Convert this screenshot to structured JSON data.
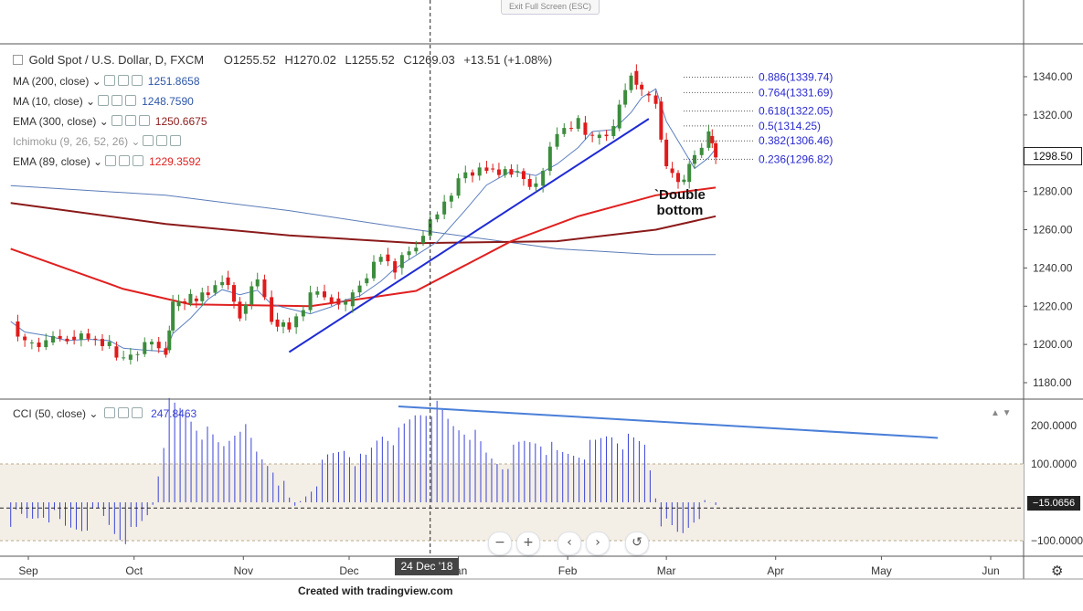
{
  "ui": {
    "exit_fullscreen": "Exit Full Screen (ESC)",
    "footer": "Created with tradingview.com",
    "nav_buttons": [
      {
        "name": "zoom-out-button",
        "glyph": "−"
      },
      {
        "name": "zoom-in-button",
        "glyph": "+"
      },
      {
        "name": "scroll-left-button",
        "glyph": "‹"
      },
      {
        "name": "scroll-right-button",
        "glyph": "›"
      },
      {
        "name": "reset-button",
        "glyph": "↺"
      }
    ],
    "settings_icon": "gear-icon"
  },
  "header": {
    "symbol": "Gold Spot / U.S. Dollar, D, FXCM",
    "open": "O1255.52",
    "high": "H1270.02",
    "low": "L1255.52",
    "close": "C1269.03",
    "change": "+13.51 (+1.08%)"
  },
  "indicators": [
    {
      "label": "MA (200, close)",
      "value": "1251.8658",
      "color": "#2e57a8"
    },
    {
      "label": "MA (10, close)",
      "value": "1248.7590",
      "color": "#2e57a8"
    },
    {
      "label": "EMA (300, close)",
      "value": "1250.6675",
      "color": "#8b1a1a"
    },
    {
      "label": "Ichimoku (9, 26, 52, 26)",
      "value": "",
      "color": "#aaaaaa"
    },
    {
      "label": "EMA (89, close)",
      "value": "1229.3592",
      "color": "#e02020"
    }
  ],
  "cci": {
    "label": "CCI (50, close)",
    "value": "247.8463",
    "current": "−15.0656"
  },
  "annotations": {
    "double_bottom_line1": "`Double",
    "double_bottom_line2": "bottom"
  },
  "crosshair": {
    "date_label": "24 Dec '18"
  },
  "current_price": "1298.50",
  "colors": {
    "up": "#3c8c3c",
    "down": "#e01b1b",
    "ma200": "#5a7bb8",
    "ma10": "#5c7fc0",
    "ema300": "#8b1a1a",
    "ema89": "#e02020",
    "trend": "#1f2bd4",
    "cci": "#3a43d6",
    "cciTrend": "#4a7fd8"
  },
  "chart_data": {
    "type": "candlestick",
    "price_axis": {
      "ticks": [
        1180,
        1200,
        1220,
        1240,
        1260,
        1280,
        1300,
        1320,
        1340
      ],
      "labels": [
        "1180.00",
        "1200.00",
        "1220.00",
        "1240.00",
        "1260.00",
        "1280.00",
        "1300.00",
        "1320.00",
        "1340.00"
      ]
    },
    "cci_axis": {
      "ticks": [
        200,
        100,
        -100
      ],
      "labels": [
        "200.0000",
        "100.0000",
        "−100.0000"
      ],
      "band": [
        -100,
        100
      ]
    },
    "x_labels": [
      "Sep",
      "Oct",
      "Nov",
      "Dec",
      "Jan",
      "Feb",
      "Mar",
      "Apr",
      "May",
      "Jun"
    ],
    "x_label_dates": [
      "2018-09-01",
      "2018-10-01",
      "2018-11-01",
      "2018-12-01",
      "2019-01-01",
      "2019-02-01",
      "2019-03-01",
      "2019-04-01",
      "2019-05-01",
      "2019-06-01"
    ],
    "crosshair_date": "2018-12-24",
    "fib_levels": [
      {
        "label": "0.886(1339.74)",
        "price": 1339.74
      },
      {
        "label": "0.764(1331.69)",
        "price": 1331.69
      },
      {
        "label": "0.618(1322.05)",
        "price": 1322.05
      },
      {
        "label": "0.5(1314.25)",
        "price": 1314.25
      },
      {
        "label": "0.382(1306.46)",
        "price": 1306.46
      },
      {
        "label": "0.236(1296.82)",
        "price": 1296.82
      }
    ],
    "closes": [
      [
        "2018-08-27",
        1212
      ],
      [
        "2018-08-31",
        1201
      ],
      [
        "2018-09-06",
        1201
      ],
      [
        "2018-09-12",
        1204
      ],
      [
        "2018-09-18",
        1203
      ],
      [
        "2018-09-24",
        1199
      ],
      [
        "2018-09-28",
        1192
      ],
      [
        "2018-10-04",
        1200
      ],
      [
        "2018-10-10",
        1197
      ],
      [
        "2018-10-12",
        1220
      ],
      [
        "2018-10-17",
        1224
      ],
      [
        "2018-10-22",
        1227
      ],
      [
        "2018-10-26",
        1235
      ],
      [
        "2018-10-31",
        1216
      ],
      [
        "2018-11-05",
        1234
      ],
      [
        "2018-11-09",
        1213
      ],
      [
        "2018-11-14",
        1209
      ],
      [
        "2018-11-20",
        1226
      ],
      [
        "2018-11-26",
        1224
      ],
      [
        "2018-11-30",
        1220
      ],
      [
        "2018-12-04",
        1232
      ],
      [
        "2018-12-10",
        1247
      ],
      [
        "2018-12-14",
        1240
      ],
      [
        "2018-12-20",
        1253
      ],
      [
        "2018-12-26",
        1268
      ],
      [
        "2019-01-03",
        1290
      ],
      [
        "2019-01-09",
        1292
      ],
      [
        "2019-01-16",
        1290
      ],
      [
        "2019-01-23",
        1283
      ],
      [
        "2019-01-29",
        1310
      ],
      [
        "2019-02-04",
        1316
      ],
      [
        "2019-02-08",
        1308
      ],
      [
        "2019-02-14",
        1313
      ],
      [
        "2019-02-19",
        1343
      ],
      [
        "2019-02-22",
        1331
      ],
      [
        "2019-02-26",
        1327
      ],
      [
        "2019-03-01",
        1292
      ],
      [
        "2019-03-06",
        1285
      ],
      [
        "2019-03-09",
        1299
      ],
      [
        "2019-03-13",
        1309
      ],
      [
        "2019-03-15",
        1299
      ]
    ],
    "lines": {
      "ma200": [
        [
          "2018-08-27",
          1283
        ],
        [
          "2018-10-10",
          1278
        ],
        [
          "2018-11-14",
          1270
        ],
        [
          "2018-12-20",
          1260
        ],
        [
          "2019-01-29",
          1250
        ],
        [
          "2019-02-26",
          1247
        ],
        [
          "2019-03-15",
          1247
        ]
      ],
      "ema300": [
        [
          "2018-08-27",
          1274
        ],
        [
          "2018-10-10",
          1263
        ],
        [
          "2018-11-14",
          1257
        ],
        [
          "2018-12-20",
          1253
        ],
        [
          "2019-01-29",
          1254
        ],
        [
          "2019-02-26",
          1260
        ],
        [
          "2019-03-15",
          1267
        ]
      ],
      "ema89": [
        [
          "2018-08-27",
          1250
        ],
        [
          "2018-09-28",
          1229
        ],
        [
          "2018-10-17",
          1221
        ],
        [
          "2018-11-20",
          1220
        ],
        [
          "2018-12-20",
          1228
        ],
        [
          "2019-01-16",
          1254
        ],
        [
          "2019-02-04",
          1267
        ],
        [
          "2019-02-26",
          1278
        ],
        [
          "2019-03-15",
          1282
        ]
      ],
      "trendline": [
        [
          "2018-11-14",
          1196
        ],
        [
          "2019-02-24",
          1318
        ]
      ]
    },
    "cci_values": [
      -40,
      -50,
      -20,
      -70,
      -60,
      -30,
      -80,
      -90,
      -15,
      250,
      230,
      180,
      140,
      210,
      120,
      90,
      -25,
      40,
      110,
      145,
      95,
      180,
      170,
      230,
      250,
      200,
      190,
      120,
      100,
      150,
      165,
      120,
      130,
      140,
      180,
      155,
      150,
      -60,
      -90,
      -20,
      -15
    ],
    "cci_trendline": [
      [
        "2018-12-15",
        250
      ],
      [
        "2019-05-17",
        168
      ]
    ]
  }
}
